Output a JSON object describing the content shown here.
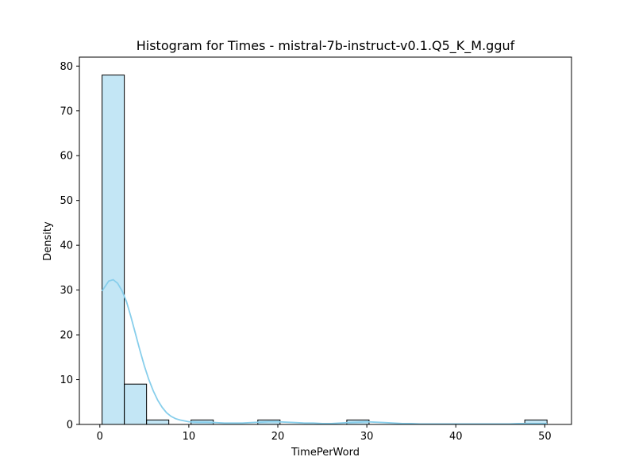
{
  "chart_data": {
    "type": "bar",
    "title": "Histogram for Times - mistral-7b-instruct-v0.1.Q5_K_M.gguf",
    "xlabel": "TimePerWord",
    "ylabel": "Density",
    "xlim": [
      -2.3,
      53.0
    ],
    "ylim": [
      0,
      82
    ],
    "xticks": [
      0,
      10,
      20,
      30,
      40,
      50
    ],
    "yticks": [
      0,
      10,
      20,
      30,
      40,
      50,
      60,
      70,
      80
    ],
    "grid": false,
    "bar_color": "#87ceeb",
    "bar_fill_opacity": 0.5,
    "bar_edge_color": "#000000",
    "kde_color": "#87ceeb",
    "bins": [
      {
        "x0": 0.25,
        "x1": 2.75,
        "value": 78
      },
      {
        "x0": 2.75,
        "x1": 5.25,
        "value": 9
      },
      {
        "x0": 5.25,
        "x1": 7.75,
        "value": 1
      },
      {
        "x0": 7.75,
        "x1": 10.25,
        "value": 0
      },
      {
        "x0": 10.25,
        "x1": 12.75,
        "value": 1
      },
      {
        "x0": 12.75,
        "x1": 15.25,
        "value": 0
      },
      {
        "x0": 15.25,
        "x1": 17.75,
        "value": 0
      },
      {
        "x0": 17.75,
        "x1": 20.25,
        "value": 1
      },
      {
        "x0": 20.25,
        "x1": 22.75,
        "value": 0
      },
      {
        "x0": 22.75,
        "x1": 25.25,
        "value": 0
      },
      {
        "x0": 25.25,
        "x1": 27.75,
        "value": 0
      },
      {
        "x0": 27.75,
        "x1": 30.25,
        "value": 1
      },
      {
        "x0": 30.25,
        "x1": 32.75,
        "value": 0
      },
      {
        "x0": 32.75,
        "x1": 35.25,
        "value": 0
      },
      {
        "x0": 35.25,
        "x1": 37.75,
        "value": 0
      },
      {
        "x0": 37.75,
        "x1": 40.25,
        "value": 0
      },
      {
        "x0": 40.25,
        "x1": 42.75,
        "value": 0
      },
      {
        "x0": 42.75,
        "x1": 45.25,
        "value": 0
      },
      {
        "x0": 45.25,
        "x1": 47.75,
        "value": 0
      },
      {
        "x0": 47.75,
        "x1": 50.25,
        "value": 1
      }
    ],
    "kde": {
      "x": [
        0.25,
        1.0,
        1.5,
        2.0,
        2.5,
        3.0,
        3.5,
        4.0,
        4.5,
        5.0,
        5.5,
        6.0,
        6.5,
        7.0,
        7.5,
        8.0,
        8.5,
        9.0,
        9.5,
        10.0,
        11.0,
        12.0,
        13.0,
        14.0,
        15.0,
        16.0,
        17.0,
        18.0,
        19.0,
        20.0,
        21.0,
        22.0,
        23.0,
        24.0,
        25.0,
        26.0,
        27.0,
        28.0,
        29.0,
        30.0,
        31.0,
        32.0,
        33.0,
        34.0,
        35.0,
        36.0,
        37.0,
        38.0,
        39.0,
        40.0,
        41.0,
        42.0,
        43.0,
        44.0,
        45.0,
        46.0,
        47.0,
        48.0,
        49.0,
        50.25
      ],
      "y": [
        29.8,
        32.0,
        32.3,
        31.5,
        29.8,
        27.4,
        24.0,
        20.3,
        16.6,
        13.1,
        10.0,
        7.5,
        5.4,
        3.8,
        2.6,
        1.8,
        1.3,
        1.0,
        0.8,
        0.6,
        0.5,
        0.5,
        0.4,
        0.3,
        0.3,
        0.3,
        0.4,
        0.5,
        0.6,
        0.6,
        0.5,
        0.4,
        0.3,
        0.3,
        0.2,
        0.2,
        0.3,
        0.4,
        0.5,
        0.6,
        0.5,
        0.4,
        0.3,
        0.2,
        0.2,
        0.1,
        0.1,
        0.1,
        0.1,
        0.1,
        0.1,
        0.1,
        0.1,
        0.1,
        0.1,
        0.1,
        0.2,
        0.2,
        0.2,
        0.2
      ]
    }
  }
}
